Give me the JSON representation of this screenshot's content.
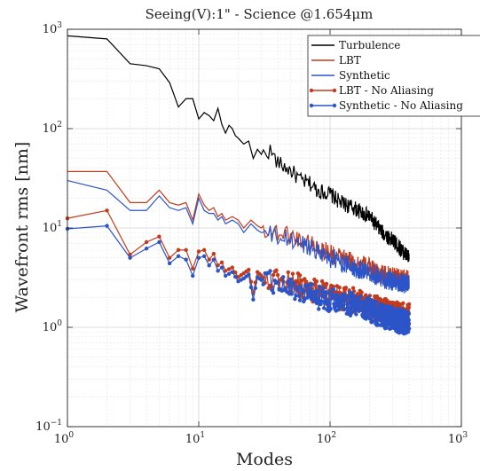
{
  "chart_data": {
    "type": "line",
    "title": "Seeing(V):1\" - Science @1.654μm",
    "xlabel": "Modes",
    "ylabel": "Wavefront rms [nm]",
    "xscale": "log",
    "yscale": "log",
    "xlim": [
      1,
      1000
    ],
    "ylim": [
      0.1,
      1000
    ],
    "x_ticks": [
      {
        "value": 1,
        "base": "10",
        "exp": "0"
      },
      {
        "value": 10,
        "base": "10",
        "exp": "1"
      },
      {
        "value": 100,
        "base": "10",
        "exp": "2"
      },
      {
        "value": 1000,
        "base": "10",
        "exp": "3"
      }
    ],
    "y_ticks": [
      {
        "value": 0.1,
        "base": "10",
        "exp": "−1"
      },
      {
        "value": 1,
        "base": "10",
        "exp": "0"
      },
      {
        "value": 10,
        "base": "10",
        "exp": "1"
      },
      {
        "value": 100,
        "base": "10",
        "exp": "2"
      },
      {
        "value": 1000,
        "base": "10",
        "exp": "3"
      }
    ],
    "grid": true,
    "legend_position": "top-right",
    "series": [
      {
        "name": "Turbulence",
        "color": "#000000",
        "markers": false,
        "points": [
          [
            1,
            860
          ],
          [
            2,
            800
          ],
          [
            3,
            450
          ],
          [
            4,
            430
          ],
          [
            5,
            400
          ],
          [
            6,
            290
          ],
          [
            7,
            165
          ],
          [
            8,
            200
          ],
          [
            9,
            200
          ],
          [
            10,
            125
          ],
          [
            11,
            145
          ],
          [
            12,
            135
          ],
          [
            13,
            120
          ],
          [
            14,
            160
          ],
          [
            15,
            110
          ],
          [
            16,
            90
          ],
          [
            17,
            108
          ],
          [
            18,
            100
          ],
          [
            19,
            85
          ],
          [
            20,
            80
          ],
          [
            22,
            70
          ],
          [
            24,
            75
          ],
          [
            26,
            50
          ],
          [
            28,
            62
          ],
          [
            30,
            55
          ],
          [
            35,
            60
          ],
          [
            40,
            45
          ],
          [
            50,
            38
          ],
          [
            60,
            30
          ],
          [
            70,
            28
          ],
          [
            80,
            24
          ],
          [
            100,
            22
          ],
          [
            120,
            18
          ],
          [
            150,
            16
          ],
          [
            200,
            13
          ],
          [
            250,
            9
          ],
          [
            300,
            7.5
          ],
          [
            350,
            6
          ],
          [
            400,
            5
          ]
        ],
        "noise": 0.08
      },
      {
        "name": "LBT",
        "color": "#c23b1c",
        "markers": false,
        "points": [
          [
            1,
            37
          ],
          [
            2,
            37
          ],
          [
            3,
            18
          ],
          [
            4,
            18
          ],
          [
            5,
            24
          ],
          [
            6,
            18
          ],
          [
            7,
            17
          ],
          [
            8,
            18
          ],
          [
            9,
            12
          ],
          [
            10,
            22
          ],
          [
            11,
            17
          ],
          [
            12,
            15
          ],
          [
            13,
            16
          ],
          [
            14,
            13
          ],
          [
            15,
            14
          ],
          [
            16,
            12
          ],
          [
            18,
            13
          ],
          [
            20,
            12
          ],
          [
            22,
            10
          ],
          [
            25,
            12
          ],
          [
            28,
            10.5
          ],
          [
            30,
            10
          ],
          [
            40,
            9
          ],
          [
            50,
            8.5
          ],
          [
            60,
            7.5
          ],
          [
            70,
            7
          ],
          [
            80,
            6.5
          ],
          [
            100,
            5.5
          ],
          [
            150,
            4.5
          ],
          [
            200,
            4
          ],
          [
            250,
            3.4
          ],
          [
            300,
            3.2
          ],
          [
            400,
            3
          ]
        ],
        "noise": 0.1
      },
      {
        "name": "Synthetic",
        "color": "#2c54c9",
        "markers": false,
        "points": [
          [
            1,
            30
          ],
          [
            2,
            24
          ],
          [
            3,
            15
          ],
          [
            4,
            15
          ],
          [
            5,
            21
          ],
          [
            6,
            16
          ],
          [
            7,
            15
          ],
          [
            8,
            16
          ],
          [
            9,
            11
          ],
          [
            10,
            20
          ],
          [
            11,
            15
          ],
          [
            12,
            14
          ],
          [
            13,
            14
          ],
          [
            14,
            12
          ],
          [
            15,
            13
          ],
          [
            16,
            11
          ],
          [
            18,
            12
          ],
          [
            20,
            11
          ],
          [
            22,
            9
          ],
          [
            25,
            11
          ],
          [
            28,
            9.5
          ],
          [
            30,
            9
          ],
          [
            40,
            8
          ],
          [
            50,
            7.5
          ],
          [
            60,
            7
          ],
          [
            70,
            6.5
          ],
          [
            80,
            6
          ],
          [
            100,
            5
          ],
          [
            150,
            4
          ],
          [
            200,
            3.6
          ],
          [
            250,
            3.1
          ],
          [
            300,
            2.9
          ],
          [
            400,
            2.7
          ]
        ],
        "noise": 0.1
      },
      {
        "name": "LBT - No Aliasing",
        "color": "#c23b1c",
        "markers": true,
        "points": [
          [
            1,
            12.5
          ],
          [
            2,
            15
          ],
          [
            3,
            5.4
          ],
          [
            4,
            7.2
          ],
          [
            5,
            8.2
          ],
          [
            6,
            5
          ],
          [
            7,
            6
          ],
          [
            8,
            6
          ],
          [
            9,
            3.9
          ],
          [
            10,
            5.8
          ],
          [
            11,
            6
          ],
          [
            12,
            4.8
          ],
          [
            13,
            5.5
          ],
          [
            14,
            4.2
          ],
          [
            15,
            4.5
          ],
          [
            16,
            3.7
          ],
          [
            18,
            4
          ],
          [
            20,
            3.2
          ],
          [
            22,
            3.5
          ],
          [
            24,
            3.8
          ],
          [
            26,
            2.2
          ],
          [
            28,
            3.6
          ],
          [
            30,
            3.3
          ],
          [
            40,
            3
          ],
          [
            50,
            2.8
          ],
          [
            60,
            2.6
          ],
          [
            70,
            2.4
          ],
          [
            80,
            2.3
          ],
          [
            100,
            2.1
          ],
          [
            150,
            1.9
          ],
          [
            200,
            1.7
          ],
          [
            250,
            1.5
          ],
          [
            300,
            1.4
          ],
          [
            400,
            1.3
          ]
        ],
        "noise": 0.12
      },
      {
        "name": "Synthetic - No Aliasing",
        "color": "#2c54c9",
        "markers": true,
        "points": [
          [
            1,
            9.8
          ],
          [
            2,
            10.5
          ],
          [
            3,
            5
          ],
          [
            4,
            6.2
          ],
          [
            5,
            7.2
          ],
          [
            6,
            4.4
          ],
          [
            7,
            5.2
          ],
          [
            8,
            4.8
          ],
          [
            9,
            3.3
          ],
          [
            10,
            5
          ],
          [
            11,
            5.2
          ],
          [
            12,
            4.2
          ],
          [
            13,
            4.8
          ],
          [
            14,
            3.7
          ],
          [
            15,
            4
          ],
          [
            16,
            3.3
          ],
          [
            18,
            3.6
          ],
          [
            20,
            2.9
          ],
          [
            22,
            3.1
          ],
          [
            24,
            3.4
          ],
          [
            26,
            1.9
          ],
          [
            28,
            3.2
          ],
          [
            30,
            3
          ],
          [
            40,
            2.7
          ],
          [
            50,
            2.5
          ],
          [
            60,
            2.3
          ],
          [
            70,
            2.1
          ],
          [
            80,
            2
          ],
          [
            100,
            1.9
          ],
          [
            150,
            1.7
          ],
          [
            200,
            1.5
          ],
          [
            250,
            1.3
          ],
          [
            300,
            1.2
          ],
          [
            400,
            1.1
          ]
        ],
        "noise": 0.12
      }
    ]
  }
}
